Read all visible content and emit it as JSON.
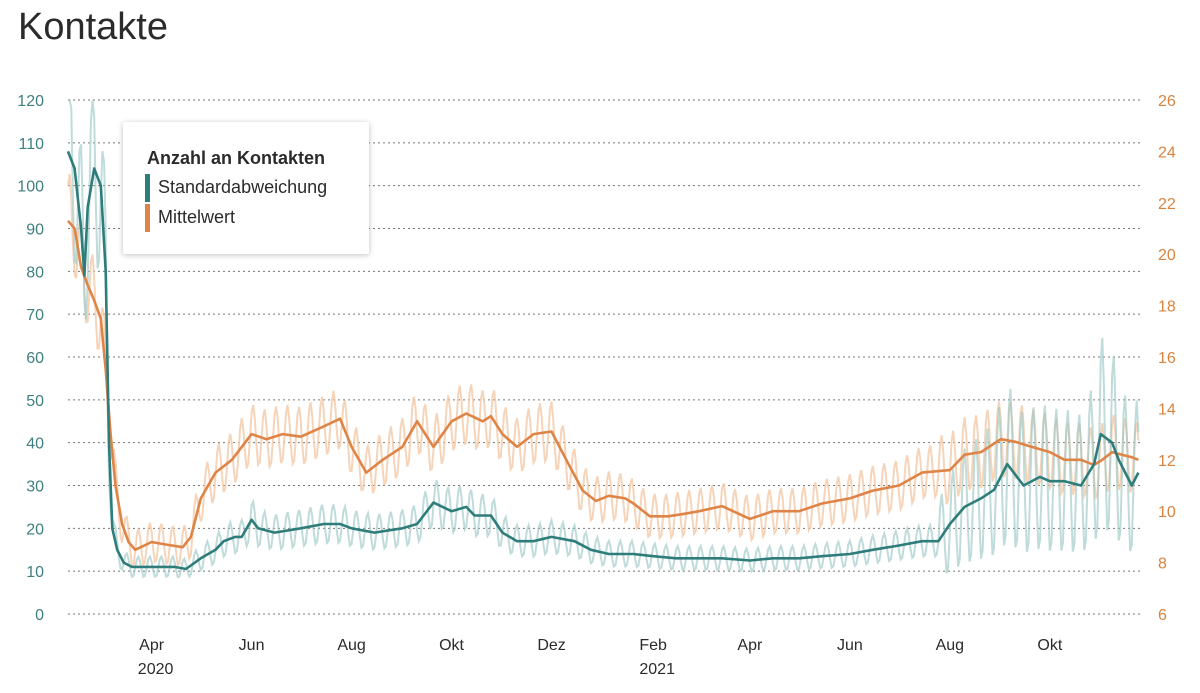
{
  "title": "Kontakte",
  "colors": {
    "sd": "#2e7d7b",
    "mean": "#de8447",
    "sd_raw": "#9cc7c6",
    "mean_raw": "#f4c9a7"
  },
  "chart_data": {
    "type": "line",
    "title": "Kontakte",
    "legend": {
      "title": "Anzahl an Kontakten",
      "entries": [
        "Standardabweichung",
        "Mittelwert"
      ],
      "placement": "top-left"
    },
    "y_left": {
      "min": 0,
      "max": 120,
      "ticks": [
        "0",
        "10",
        "20",
        "30",
        "40",
        "50",
        "60",
        "70",
        "80",
        "90",
        "100",
        "110",
        "120"
      ],
      "series": "Standardabweichung"
    },
    "y_right": {
      "min": 6,
      "max": 26,
      "ticks": [
        "6",
        "8",
        "10",
        "12",
        "14",
        "16",
        "18",
        "20",
        "22",
        "24",
        "26"
      ],
      "series": "Mittelwert"
    },
    "x": {
      "min": "2020-02-10",
      "max": "2021-11-25",
      "ticks": [
        {
          "date": "2020-04-01",
          "label": "Apr",
          "year": "2020"
        },
        {
          "date": "2020-06-01",
          "label": "Jun"
        },
        {
          "date": "2020-08-01",
          "label": "Aug"
        },
        {
          "date": "2020-10-01",
          "label": "Okt"
        },
        {
          "date": "2020-12-01",
          "label": "Dez"
        },
        {
          "date": "2021-02-01",
          "label": "Feb",
          "year": "2021"
        },
        {
          "date": "2021-04-01",
          "label": "Apr"
        },
        {
          "date": "2021-06-01",
          "label": "Jun"
        },
        {
          "date": "2021-08-01",
          "label": "Aug"
        },
        {
          "date": "2021-10-01",
          "label": "Okt"
        }
      ]
    },
    "grid": true,
    "series": [
      {
        "name": "Standardabweichung",
        "axis": "left",
        "points": [
          [
            "2020-02-10",
            108
          ],
          [
            "2020-02-14",
            104
          ],
          [
            "2020-02-18",
            90
          ],
          [
            "2020-02-20",
            79
          ],
          [
            "2020-02-22",
            95
          ],
          [
            "2020-02-26",
            104
          ],
          [
            "2020-03-01",
            100
          ],
          [
            "2020-03-04",
            80
          ],
          [
            "2020-03-06",
            40
          ],
          [
            "2020-03-08",
            20
          ],
          [
            "2020-03-11",
            15
          ],
          [
            "2020-03-15",
            12
          ],
          [
            "2020-03-20",
            11
          ],
          [
            "2020-04-01",
            11
          ],
          [
            "2020-04-15",
            11
          ],
          [
            "2020-04-22",
            10.5
          ],
          [
            "2020-05-01",
            13
          ],
          [
            "2020-05-10",
            15
          ],
          [
            "2020-05-15",
            17
          ],
          [
            "2020-05-22",
            18
          ],
          [
            "2020-05-26",
            18
          ],
          [
            "2020-06-01",
            22
          ],
          [
            "2020-06-05",
            20
          ],
          [
            "2020-06-15",
            19
          ],
          [
            "2020-07-01",
            20
          ],
          [
            "2020-07-15",
            21
          ],
          [
            "2020-07-25",
            21
          ],
          [
            "2020-08-01",
            20
          ],
          [
            "2020-08-15",
            19
          ],
          [
            "2020-09-01",
            20
          ],
          [
            "2020-09-10",
            21
          ],
          [
            "2020-09-20",
            26
          ],
          [
            "2020-10-01",
            24
          ],
          [
            "2020-10-10",
            25
          ],
          [
            "2020-10-15",
            23
          ],
          [
            "2020-10-25",
            23
          ],
          [
            "2020-11-01",
            19
          ],
          [
            "2020-11-10",
            17
          ],
          [
            "2020-11-20",
            17
          ],
          [
            "2020-12-01",
            18
          ],
          [
            "2020-12-15",
            17
          ],
          [
            "2020-12-25",
            15
          ],
          [
            "2021-01-05",
            14
          ],
          [
            "2021-01-20",
            14
          ],
          [
            "2021-02-01",
            13.5
          ],
          [
            "2021-02-15",
            13
          ],
          [
            "2021-03-01",
            13
          ],
          [
            "2021-03-15",
            13
          ],
          [
            "2021-04-01",
            12.5
          ],
          [
            "2021-04-15",
            13
          ],
          [
            "2021-05-01",
            13
          ],
          [
            "2021-05-15",
            13.5
          ],
          [
            "2021-06-01",
            14
          ],
          [
            "2021-06-15",
            15
          ],
          [
            "2021-07-01",
            16
          ],
          [
            "2021-07-15",
            17
          ],
          [
            "2021-07-25",
            17
          ],
          [
            "2021-08-01",
            21
          ],
          [
            "2021-08-10",
            25
          ],
          [
            "2021-08-20",
            27
          ],
          [
            "2021-08-28",
            29
          ],
          [
            "2021-09-05",
            35
          ],
          [
            "2021-09-15",
            30
          ],
          [
            "2021-09-25",
            32
          ],
          [
            "2021-10-01",
            31
          ],
          [
            "2021-10-10",
            31
          ],
          [
            "2021-10-20",
            30
          ],
          [
            "2021-10-28",
            35
          ],
          [
            "2021-11-01",
            42
          ],
          [
            "2021-11-08",
            40
          ],
          [
            "2021-11-12",
            36
          ],
          [
            "2021-11-16",
            33
          ],
          [
            "2021-11-20",
            30
          ],
          [
            "2021-11-24",
            33
          ]
        ]
      },
      {
        "name": "Mittelwert",
        "axis": "right",
        "points": [
          [
            "2020-02-10",
            21.3
          ],
          [
            "2020-02-14",
            21.0
          ],
          [
            "2020-02-18",
            19.5
          ],
          [
            "2020-02-22",
            18.8
          ],
          [
            "2020-02-26",
            18.2
          ],
          [
            "2020-03-01",
            17.5
          ],
          [
            "2020-03-04",
            15.5
          ],
          [
            "2020-03-07",
            13.0
          ],
          [
            "2020-03-10",
            11.0
          ],
          [
            "2020-03-14",
            9.5
          ],
          [
            "2020-03-18",
            8.8
          ],
          [
            "2020-03-22",
            8.5
          ],
          [
            "2020-04-01",
            8.8
          ],
          [
            "2020-04-10",
            8.7
          ],
          [
            "2020-04-20",
            8.6
          ],
          [
            "2020-04-25",
            9.0
          ],
          [
            "2020-05-01",
            10.5
          ],
          [
            "2020-05-10",
            11.5
          ],
          [
            "2020-05-20",
            12.0
          ],
          [
            "2020-06-01",
            13.0
          ],
          [
            "2020-06-10",
            12.8
          ],
          [
            "2020-06-20",
            13.0
          ],
          [
            "2020-07-01",
            12.9
          ],
          [
            "2020-07-15",
            13.3
          ],
          [
            "2020-07-25",
            13.6
          ],
          [
            "2020-08-01",
            12.5
          ],
          [
            "2020-08-10",
            11.5
          ],
          [
            "2020-08-20",
            12.0
          ],
          [
            "2020-09-01",
            12.5
          ],
          [
            "2020-09-10",
            13.5
          ],
          [
            "2020-09-20",
            12.5
          ],
          [
            "2020-10-01",
            13.5
          ],
          [
            "2020-10-10",
            13.8
          ],
          [
            "2020-10-20",
            13.5
          ],
          [
            "2020-10-25",
            13.7
          ],
          [
            "2020-11-01",
            13.0
          ],
          [
            "2020-11-10",
            12.5
          ],
          [
            "2020-11-20",
            13.0
          ],
          [
            "2020-12-01",
            13.1
          ],
          [
            "2020-12-10",
            12.0
          ],
          [
            "2020-12-20",
            10.8
          ],
          [
            "2020-12-28",
            10.4
          ],
          [
            "2021-01-05",
            10.6
          ],
          [
            "2021-01-15",
            10.5
          ],
          [
            "2021-01-20",
            10.3
          ],
          [
            "2021-01-30",
            9.8
          ],
          [
            "2021-02-10",
            9.8
          ],
          [
            "2021-02-20",
            9.9
          ],
          [
            "2021-03-01",
            10.0
          ],
          [
            "2021-03-15",
            10.2
          ],
          [
            "2021-04-01",
            9.7
          ],
          [
            "2021-04-15",
            10.0
          ],
          [
            "2021-05-01",
            10.0
          ],
          [
            "2021-05-15",
            10.3
          ],
          [
            "2021-06-01",
            10.5
          ],
          [
            "2021-06-15",
            10.8
          ],
          [
            "2021-07-01",
            11.0
          ],
          [
            "2021-07-15",
            11.5
          ],
          [
            "2021-08-01",
            11.6
          ],
          [
            "2021-08-10",
            12.2
          ],
          [
            "2021-08-20",
            12.3
          ],
          [
            "2021-09-01",
            12.8
          ],
          [
            "2021-09-10",
            12.7
          ],
          [
            "2021-09-20",
            12.5
          ],
          [
            "2021-10-01",
            12.3
          ],
          [
            "2021-10-10",
            12.0
          ],
          [
            "2021-10-20",
            12.0
          ],
          [
            "2021-10-28",
            11.8
          ],
          [
            "2021-11-02",
            12.0
          ],
          [
            "2021-11-08",
            12.3
          ],
          [
            "2021-11-14",
            12.2
          ],
          [
            "2021-11-20",
            12.1
          ],
          [
            "2021-11-24",
            12.0
          ]
        ]
      }
    ]
  }
}
